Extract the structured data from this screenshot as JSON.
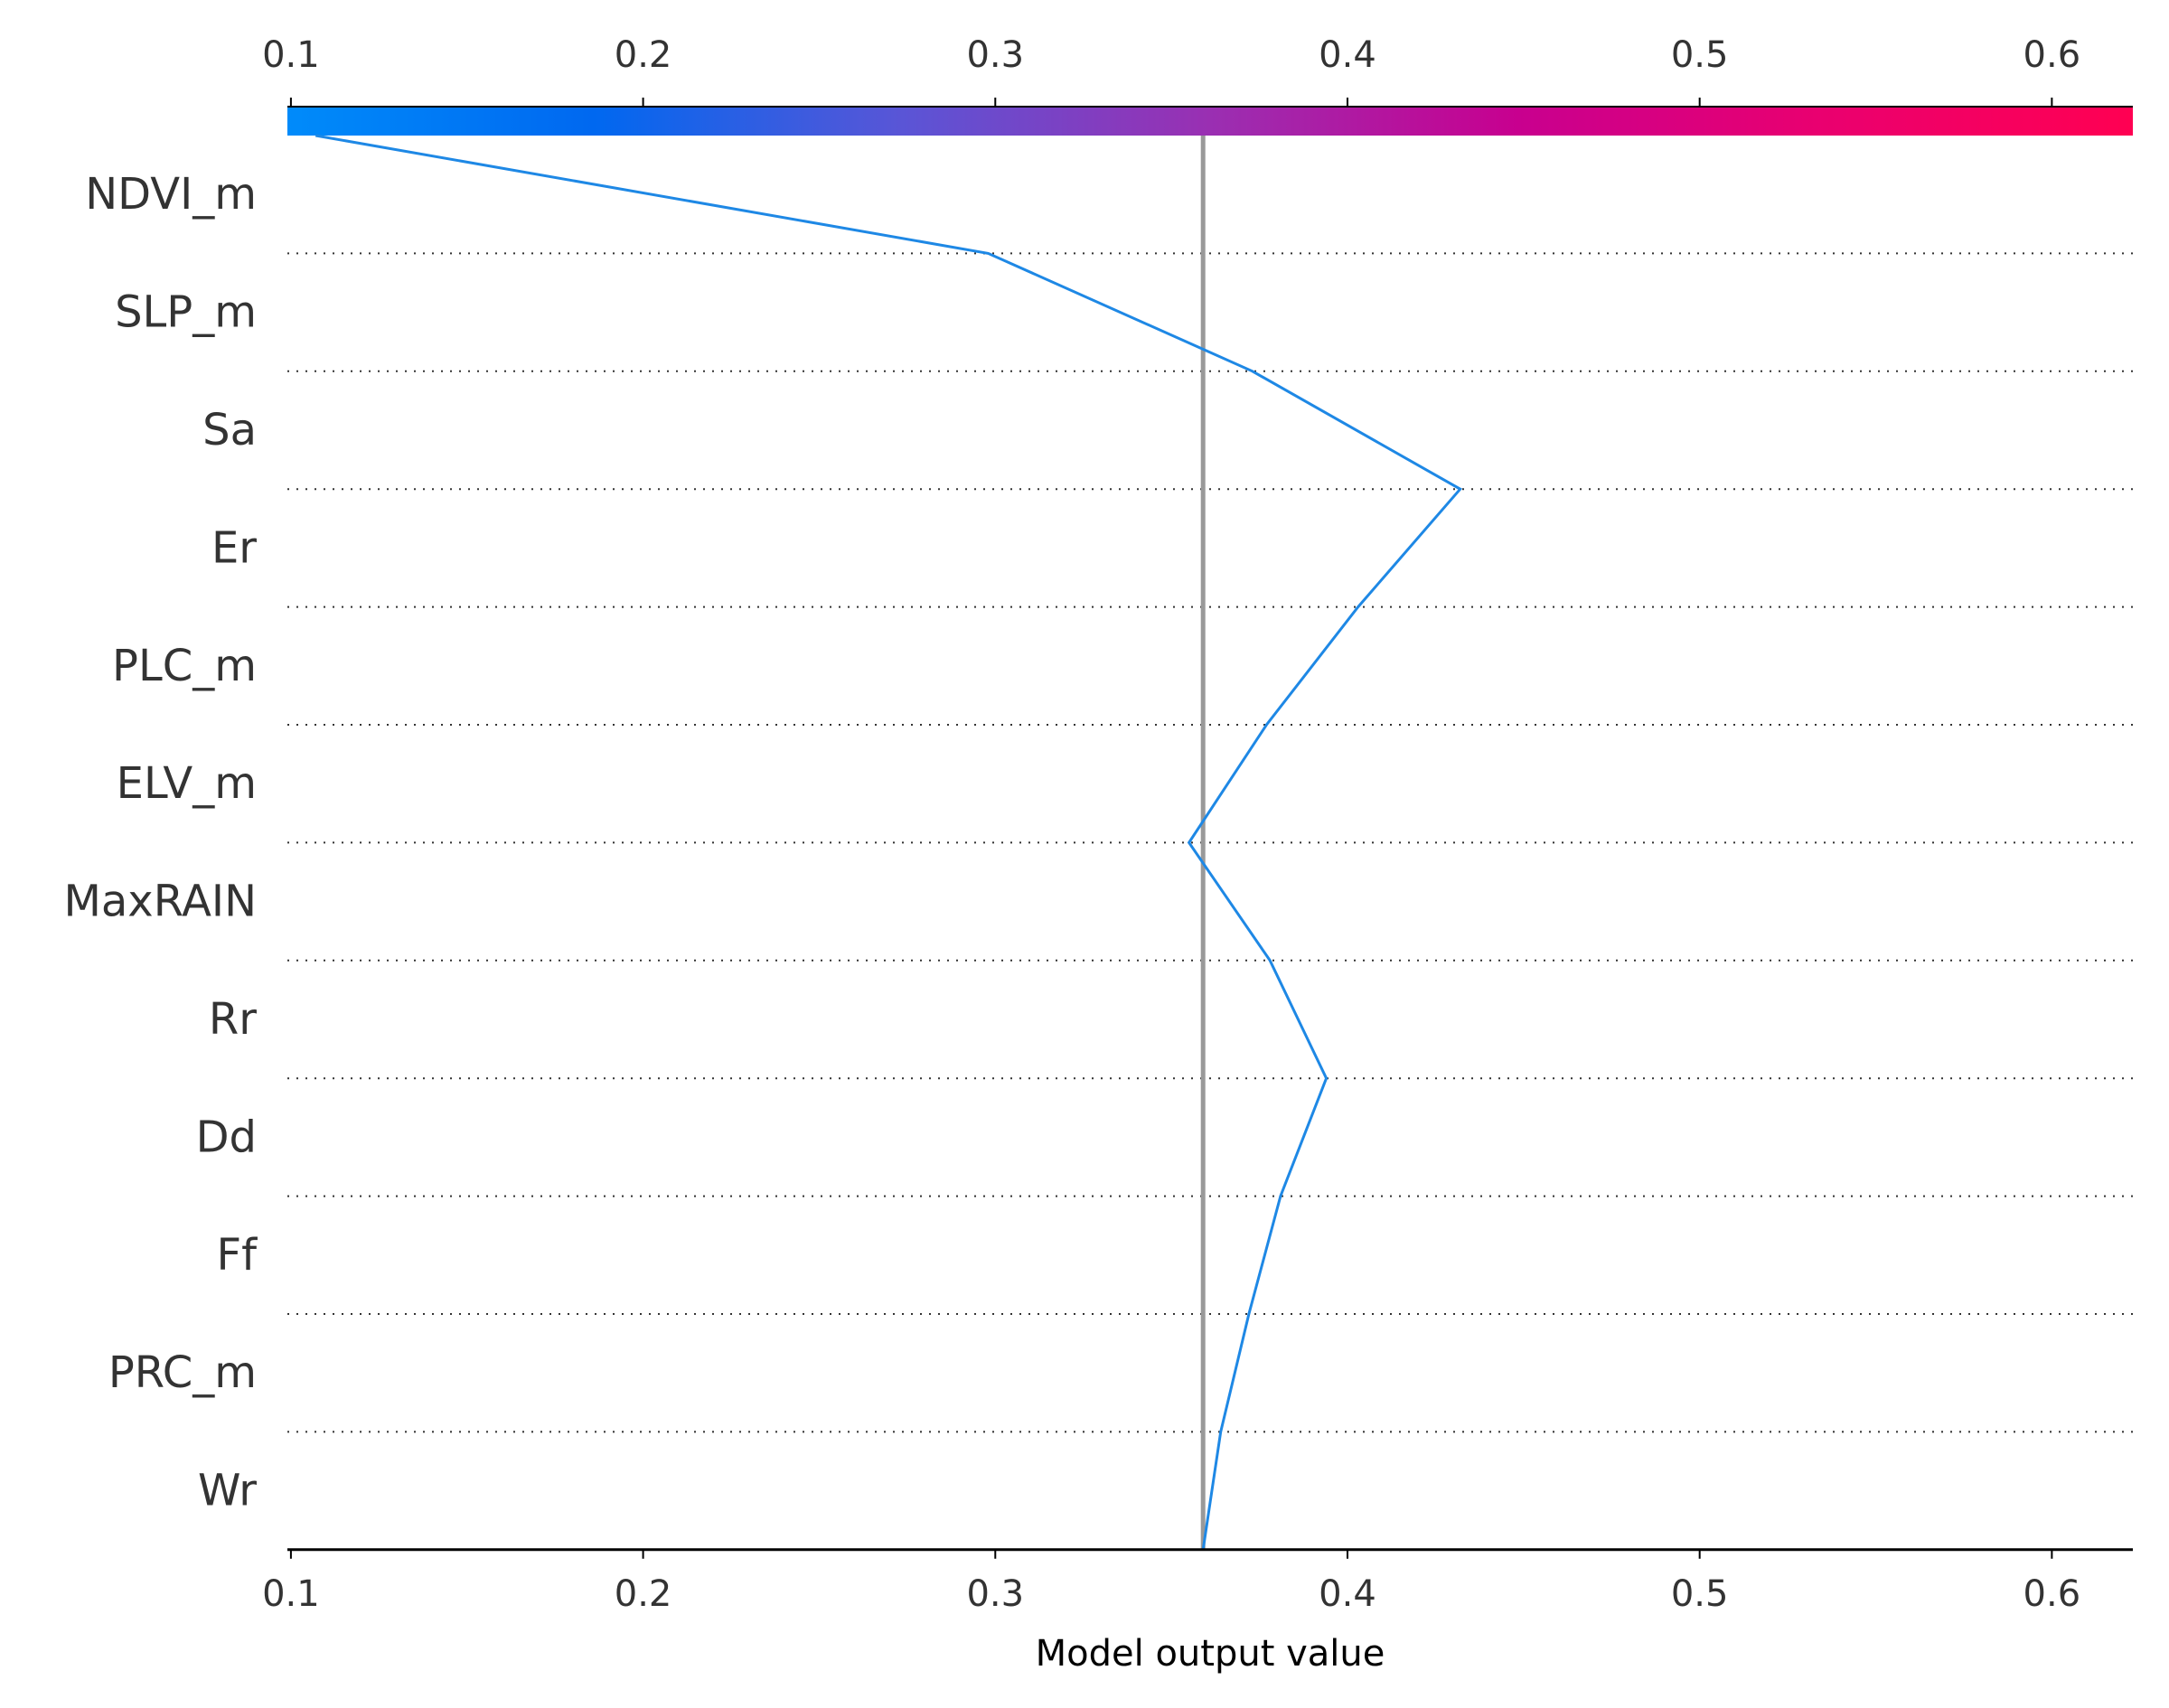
{
  "chart_data": {
    "type": "line",
    "chart_kind": "shap-decision-plot",
    "xlabel": "Model output value",
    "x_ticks": [
      0.1,
      0.2,
      0.3,
      0.4,
      0.5,
      0.6
    ],
    "x_tick_labels": [
      "0.1",
      "0.2",
      "0.3",
      "0.4",
      "0.5",
      "0.6"
    ],
    "xlim": [
      0.099,
      0.623
    ],
    "base_value": 0.359,
    "features": [
      "NDVI_m",
      "SLP_m",
      "Sa",
      "Er",
      "PLC_m",
      "ELV_m",
      "MaxRAIN",
      "Rr",
      "Dd",
      "Ff",
      "PRC_m",
      "Wr"
    ],
    "series": [
      {
        "values_by_boundary": [
          0.107,
          0.298,
          0.373,
          0.432,
          0.403,
          0.377,
          0.355,
          0.378,
          0.394,
          0.381,
          0.372,
          0.364,
          0.359
        ]
      }
    ],
    "colorbar": {
      "colormap": [
        "#008bfa",
        "#0068f0",
        "#5a55d6",
        "#9a2fb2",
        "#c8008f",
        "#ea006f",
        "#ff0052"
      ],
      "range": [
        0.099,
        0.623
      ]
    },
    "colors": {
      "line": "#1e88e5",
      "base_line": "#999999",
      "grid": "#333333",
      "text": "#333333"
    },
    "grid": true
  }
}
